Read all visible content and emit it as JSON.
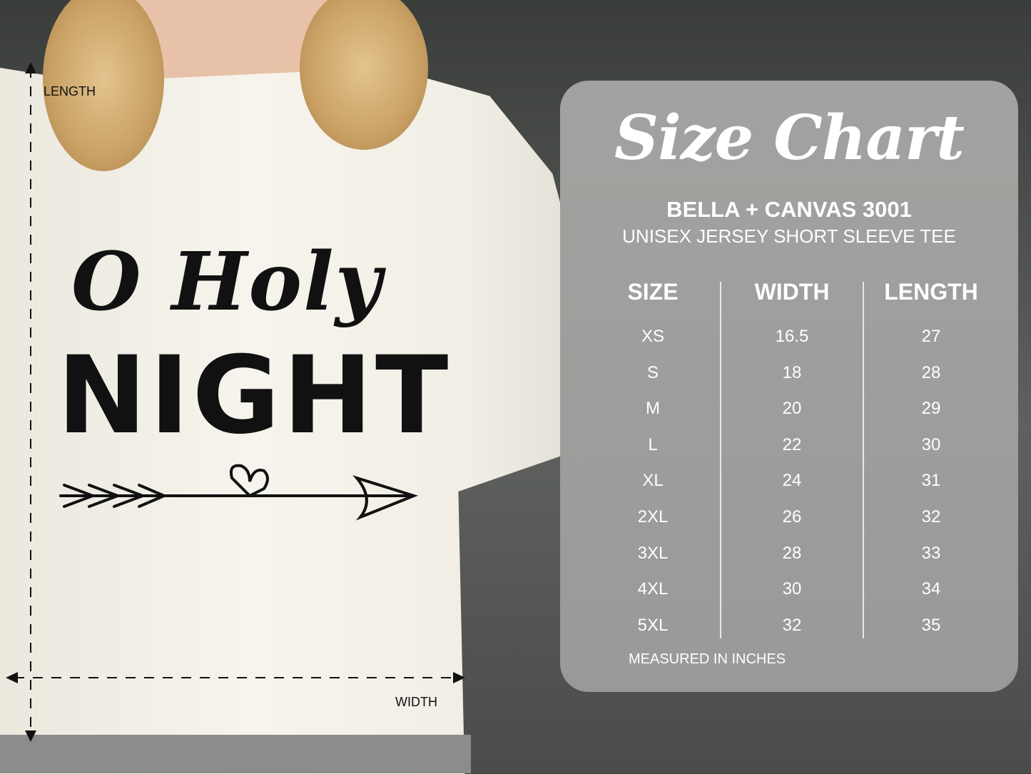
{
  "shirt_design": {
    "line1": "O Holy",
    "line2": "NIGHT"
  },
  "measure_labels": {
    "length": "LENGTH",
    "width": "WIDTH"
  },
  "panel": {
    "title": "Size Chart",
    "brand": "BELLA + CANVAS 3001",
    "subtitle": "UNISEX JERSEY SHORT SLEEVE TEE",
    "note": "MEASURED IN INCHES"
  },
  "table": {
    "headers": [
      "SIZE",
      "WIDTH",
      "LENGTH"
    ],
    "sizes": [
      "XS",
      "S",
      "M",
      "L",
      "XL",
      "2XL",
      "3XL",
      "4XL",
      "5XL"
    ],
    "widths": [
      "16.5",
      "18",
      "20",
      "22",
      "24",
      "26",
      "28",
      "30",
      "32"
    ],
    "lengths": [
      "27",
      "28",
      "29",
      "30",
      "31",
      "32",
      "33",
      "34",
      "35"
    ]
  },
  "colors": {
    "panel": "#9c9d9a",
    "text": "#ffffff",
    "shirt": "#f3f1e9",
    "background": "#4a4c4a"
  }
}
